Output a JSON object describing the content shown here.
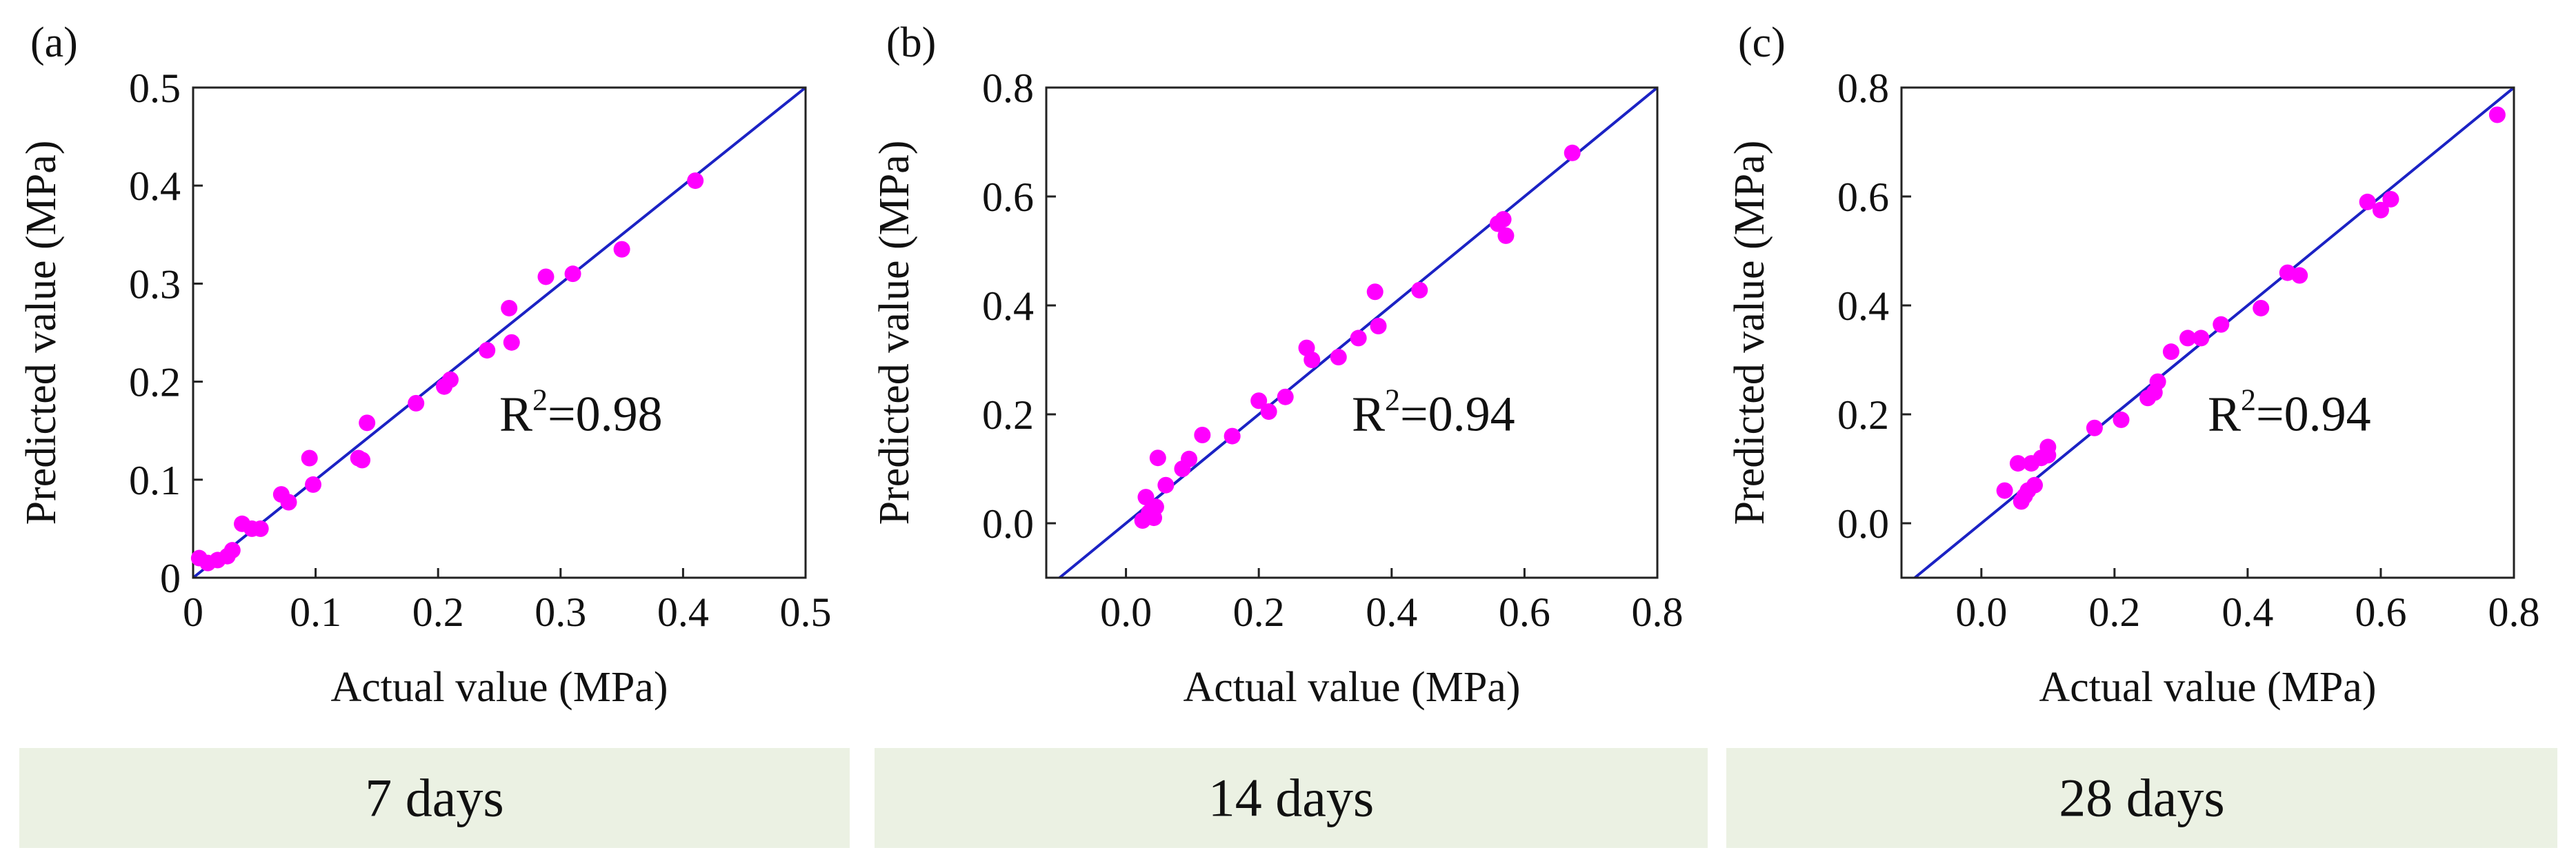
{
  "colors": {
    "point": "#ff00ff",
    "reference_line": "#1b22c4",
    "band_background": "#ebf1e3",
    "axis": "#222222"
  },
  "chart_data": [
    {
      "type": "scatter",
      "panel_label": "(a)",
      "band_label": "7  days",
      "xlabel": "Actual value (MPa)",
      "ylabel": "Predicted value (MPa)",
      "xlim": [
        0,
        0.5
      ],
      "ylim": [
        0,
        0.5
      ],
      "xticks": [
        0,
        0.1,
        0.2,
        0.3,
        0.4,
        0.5
      ],
      "xtick_labels": [
        "0",
        "0.1",
        "0.2",
        "0.3",
        "0.4",
        "0.5"
      ],
      "yticks": [
        0,
        0.1,
        0.2,
        0.3,
        0.4,
        0.5
      ],
      "ytick_labels": [
        "0",
        "0.1",
        "0.2",
        "0.3",
        "0.4",
        "0.5"
      ],
      "r2_text": "0.98",
      "r2_prefix": "R",
      "r2_sup": "2",
      "reference_line": "y = x",
      "points": [
        [
          0.005,
          0.02
        ],
        [
          0.012,
          0.015
        ],
        [
          0.02,
          0.018
        ],
        [
          0.028,
          0.022
        ],
        [
          0.032,
          0.028
        ],
        [
          0.04,
          0.055
        ],
        [
          0.048,
          0.05
        ],
        [
          0.055,
          0.05
        ],
        [
          0.072,
          0.085
        ],
        [
          0.078,
          0.077
        ],
        [
          0.095,
          0.122
        ],
        [
          0.098,
          0.095
        ],
        [
          0.135,
          0.122
        ],
        [
          0.138,
          0.12
        ],
        [
          0.142,
          0.158
        ],
        [
          0.182,
          0.178
        ],
        [
          0.205,
          0.195
        ],
        [
          0.21,
          0.202
        ],
        [
          0.24,
          0.232
        ],
        [
          0.258,
          0.275
        ],
        [
          0.26,
          0.24
        ],
        [
          0.288,
          0.307
        ],
        [
          0.31,
          0.31
        ],
        [
          0.35,
          0.335
        ],
        [
          0.41,
          0.405
        ]
      ]
    },
    {
      "type": "scatter",
      "panel_label": "(b)",
      "band_label": "14  days",
      "xlabel": "Actual value (MPa)",
      "ylabel": "Predicted value (MPa)",
      "xlim": [
        -0.12,
        0.8
      ],
      "ylim": [
        -0.1,
        0.8
      ],
      "xticks": [
        0.0,
        0.2,
        0.4,
        0.6,
        0.8
      ],
      "xtick_labels": [
        "0.0",
        "0.2",
        "0.4",
        "0.6",
        "0.8"
      ],
      "yticks": [
        0.0,
        0.2,
        0.4,
        0.6,
        0.8
      ],
      "ytick_labels": [
        "0.0",
        "0.2",
        "0.4",
        "0.6",
        "0.8"
      ],
      "r2_text": "0.94",
      "r2_prefix": "R",
      "r2_sup": "2",
      "reference_line": "y = x",
      "points": [
        [
          0.025,
          0.005
        ],
        [
          0.03,
          0.048
        ],
        [
          0.035,
          0.02
        ],
        [
          0.042,
          0.01
        ],
        [
          0.045,
          0.03
        ],
        [
          0.048,
          0.12
        ],
        [
          0.06,
          0.07
        ],
        [
          0.085,
          0.1
        ],
        [
          0.095,
          0.118
        ],
        [
          0.115,
          0.162
        ],
        [
          0.16,
          0.16
        ],
        [
          0.2,
          0.225
        ],
        [
          0.215,
          0.205
        ],
        [
          0.24,
          0.232
        ],
        [
          0.272,
          0.322
        ],
        [
          0.28,
          0.3
        ],
        [
          0.32,
          0.305
        ],
        [
          0.35,
          0.34
        ],
        [
          0.375,
          0.425
        ],
        [
          0.38,
          0.362
        ],
        [
          0.442,
          0.428
        ],
        [
          0.56,
          0.55
        ],
        [
          0.568,
          0.558
        ],
        [
          0.572,
          0.528
        ],
        [
          0.672,
          0.68
        ]
      ]
    },
    {
      "type": "scatter",
      "panel_label": "(c)",
      "band_label": "28  days",
      "xlabel": "Actual value (MPa)",
      "ylabel": "Predicted value (MPa)",
      "xlim": [
        -0.12,
        0.8
      ],
      "ylim": [
        -0.1,
        0.8
      ],
      "xticks": [
        0.0,
        0.2,
        0.4,
        0.6,
        0.8
      ],
      "xtick_labels": [
        "0.0",
        "0.2",
        "0.4",
        "0.6",
        "0.8"
      ],
      "yticks": [
        0.0,
        0.2,
        0.4,
        0.6,
        0.8
      ],
      "ytick_labels": [
        "0.0",
        "0.2",
        "0.4",
        "0.6",
        "0.8"
      ],
      "r2_text": "0.94",
      "r2_prefix": "R",
      "r2_sup": "2",
      "reference_line": "y = x",
      "points": [
        [
          0.035,
          0.06
        ],
        [
          0.055,
          0.11
        ],
        [
          0.06,
          0.04
        ],
        [
          0.065,
          0.05
        ],
        [
          0.07,
          0.06
        ],
        [
          0.075,
          0.11
        ],
        [
          0.08,
          0.07
        ],
        [
          0.09,
          0.12
        ],
        [
          0.1,
          0.14
        ],
        [
          0.1,
          0.125
        ],
        [
          0.17,
          0.175
        ],
        [
          0.21,
          0.19
        ],
        [
          0.25,
          0.23
        ],
        [
          0.26,
          0.24
        ],
        [
          0.265,
          0.26
        ],
        [
          0.285,
          0.315
        ],
        [
          0.31,
          0.34
        ],
        [
          0.33,
          0.34
        ],
        [
          0.36,
          0.365
        ],
        [
          0.42,
          0.395
        ],
        [
          0.46,
          0.46
        ],
        [
          0.478,
          0.455
        ],
        [
          0.58,
          0.59
        ],
        [
          0.6,
          0.575
        ],
        [
          0.615,
          0.595
        ],
        [
          0.775,
          0.75
        ]
      ]
    }
  ]
}
